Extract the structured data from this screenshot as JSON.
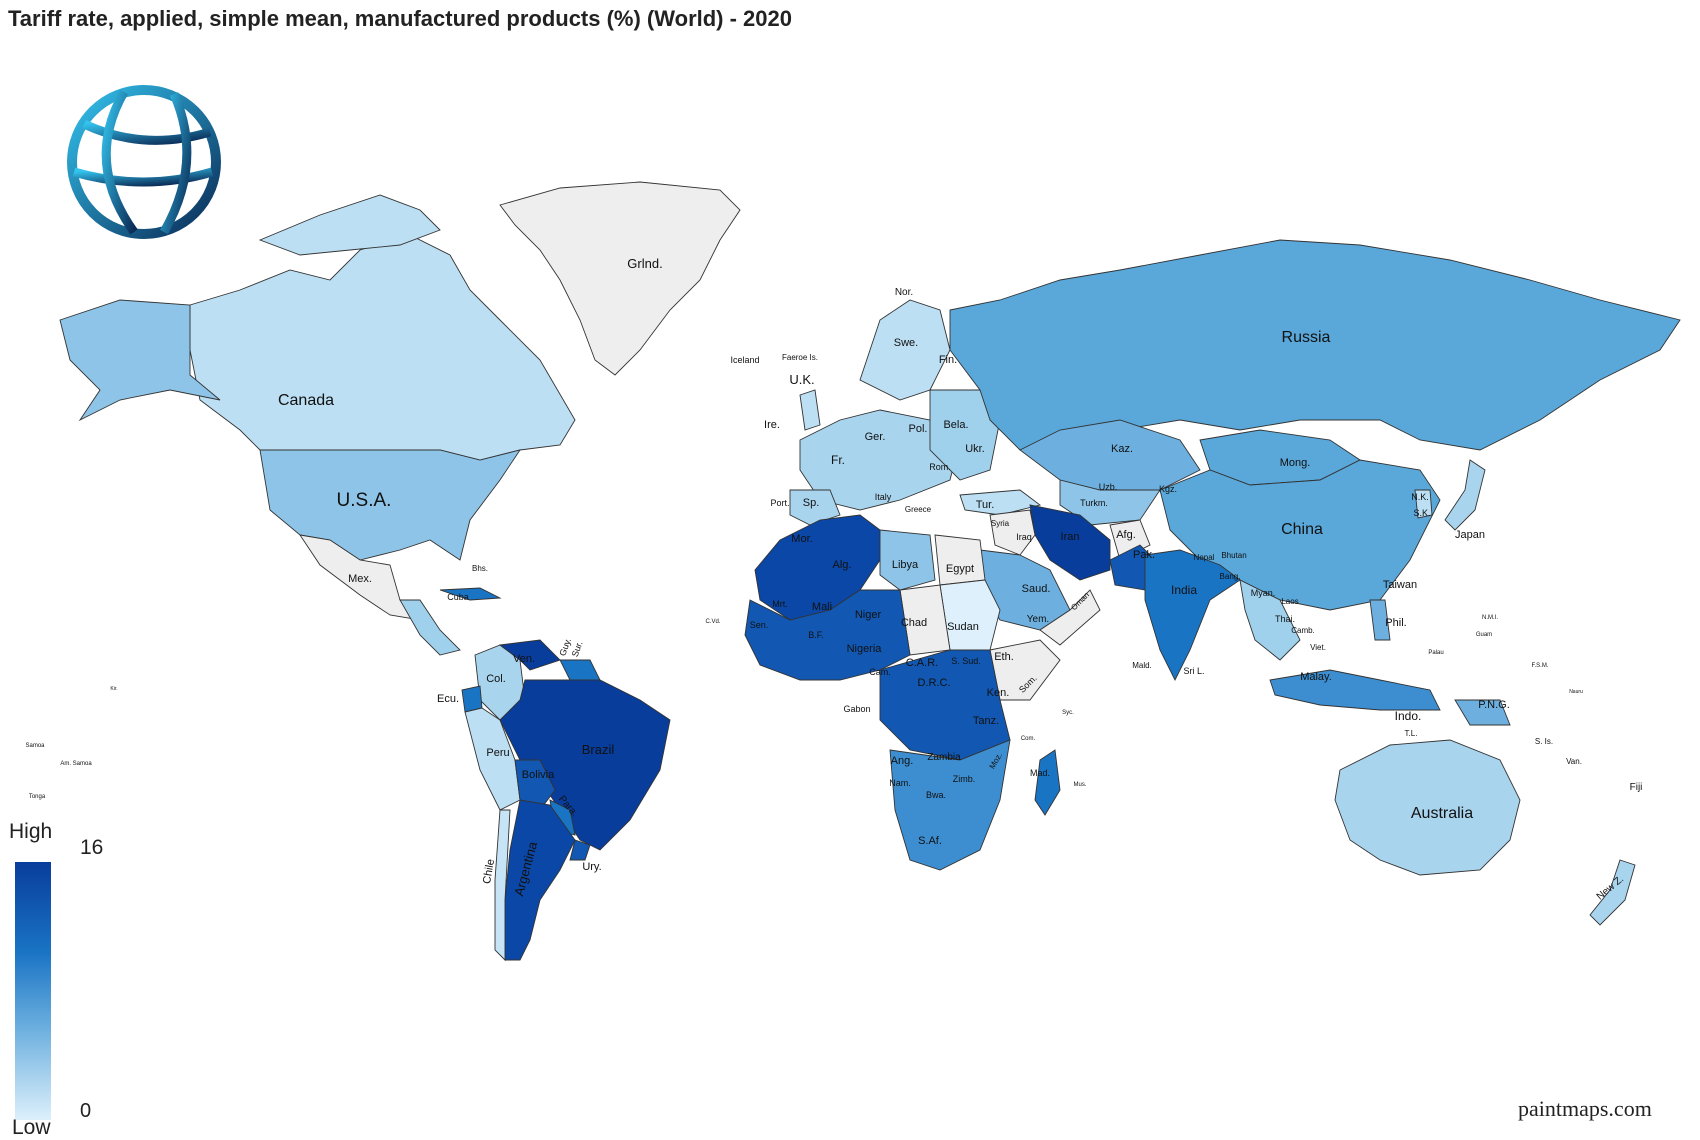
{
  "title": "Tariff rate, applied, simple mean, manufactured products (%) (World) - 2020",
  "legend": {
    "high_label": "High",
    "low_label": "Low",
    "max_value": "16",
    "min_value": "0"
  },
  "credit": "paintmaps.com",
  "colors": {
    "no_data": "#eeeeee",
    "scale_low": "#ddf0fb",
    "scale_high": "#083d9c",
    "ocean": "#ffffff"
  },
  "logo_icon": "globe-icon",
  "labels": {
    "canada": "Canada",
    "usa": "U.S.A.",
    "mexico": "Mex.",
    "greenland": "Grlnd.",
    "iceland": "Iceland",
    "faroe": "Faeroe Is.",
    "norway": "Nor.",
    "sweden": "Swe.",
    "finland": "Fin.",
    "uk": "U.K.",
    "ireland": "Ire.",
    "france": "Fr.",
    "spain": "Sp.",
    "portugal": "Port.",
    "germany": "Ger.",
    "poland": "Pol.",
    "belarus": "Bela.",
    "ukraine": "Ukr.",
    "italy": "Italy",
    "greece": "Greece",
    "romania": "Rom.",
    "turkey": "Tur.",
    "russia": "Russia",
    "kazakhstan": "Kaz.",
    "mongolia": "Mong.",
    "china": "China",
    "japan": "Japan",
    "nkorea": "N.K.",
    "skorea": "S.K.",
    "taiwan": "Taiwan",
    "iran": "Iran",
    "iraq": "Iraq",
    "syria": "Syria",
    "afghanistan": "Afg.",
    "pakistan": "Pak.",
    "india": "India",
    "nepal": "Nepal",
    "bhutan": "Bhutan",
    "bangladesh": "Bang.",
    "myanmar": "Myan.",
    "thailand": "Thai.",
    "laos": "Laos",
    "vietnam": "Viet.",
    "cambodia": "Camb.",
    "philippines": "Phil.",
    "malaysia": "Malay.",
    "indonesia": "Indo.",
    "png": "P.N.G.",
    "australia": "Australia",
    "nz": "New Z.",
    "saudi": "Saud.",
    "yemen": "Yem.",
    "oman": "Oman",
    "turkmenistan": "Turkm.",
    "uzbekistan": "Uzb.",
    "kyrgyzstan": "Kgz.",
    "morocco": "Mor.",
    "algeria": "Alg.",
    "libya": "Libya",
    "egypt": "Egypt",
    "mauritania": "Mrt.",
    "mali": "Mali",
    "niger": "Niger",
    "chad": "Chad",
    "sudan": "Sudan",
    "senegal": "Sen.",
    "burkina": "B.F.",
    "nigeria": "Nigeria",
    "ethiopia": "Eth.",
    "somalia": "Som.",
    "ssudan": "S. Sud.",
    "car": "C.A.R.",
    "cameroon": "Cam.",
    "drc": "D.R.C.",
    "kenya": "Ken.",
    "tanzania": "Tanz.",
    "angola": "Ang.",
    "zambia": "Zambia",
    "namibia": "Nam.",
    "botswana": "Bwa.",
    "zimbabwe": "Zimb.",
    "mozambique": "Moz.",
    "safrica": "S.Af.",
    "madagascar": "Mad.",
    "gabon": "Gabon",
    "brazil": "Brazil",
    "argentina": "Argentina",
    "chile": "Chile",
    "peru": "Peru",
    "bolivia": "Bolivia",
    "paraguay": "Para.",
    "uruguay": "Ury.",
    "colombia": "Col.",
    "venezuela": "Ven.",
    "ecuador": "Ecu.",
    "guyana": "Guy.",
    "suriname": "Sur.",
    "cuba": "Cuba",
    "bahamas": "Bhs.",
    "sri_lanka": "Sri L.",
    "maldives": "Mald.",
    "fiji": "Fiji",
    "vanuatu": "Van.",
    "solomon": "S. Is.",
    "samoa": "Samoa",
    "am_samoa": "Am. Samoa",
    "tonga": "Tonga",
    "cape_verde": "C.Vd.",
    "mauritius": "Mus.",
    "comoros": "Com.",
    "seychelles": "Syc.",
    "tl": "T.L.",
    "guam": "Guam",
    "palau": "Palau",
    "fsm": "F.S.M.",
    "nauru": "Nauru",
    "kiribati": "Kir.",
    "nmi": "N.M.I."
  }
}
